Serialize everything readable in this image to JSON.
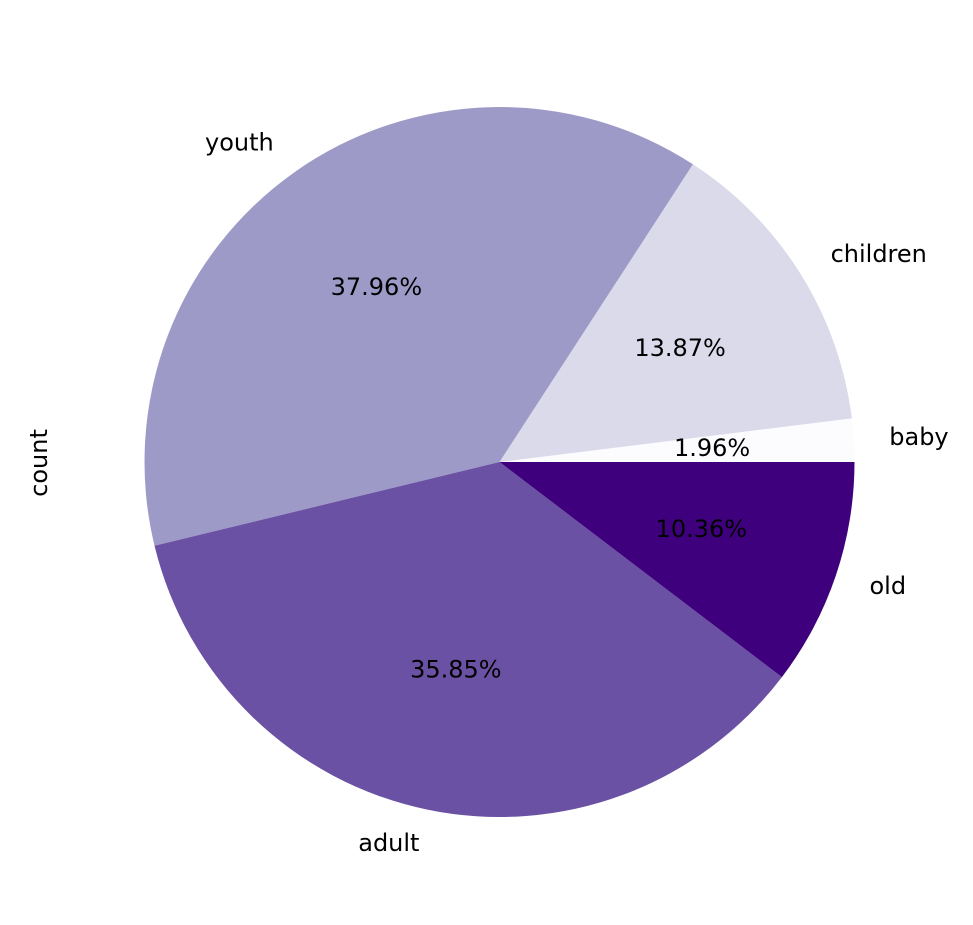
{
  "chart_data": {
    "type": "pie",
    "ylabel": "count",
    "start_angle_deg": 0,
    "direction": "counterclockwise",
    "slices": [
      {
        "label": "baby",
        "value": 1.96,
        "pct_text": "1.96%",
        "color": "#fcfbfd"
      },
      {
        "label": "children",
        "value": 13.87,
        "pct_text": "13.87%",
        "color": "#dadaeb"
      },
      {
        "label": "youth",
        "value": 37.96,
        "pct_text": "37.96%",
        "color": "#9e9ac8"
      },
      {
        "label": "adult",
        "value": 35.85,
        "pct_text": "35.85%",
        "color": "#6a51a3"
      },
      {
        "label": "old",
        "value": 10.36,
        "pct_text": "10.36%",
        "color": "#3f007d"
      }
    ]
  }
}
